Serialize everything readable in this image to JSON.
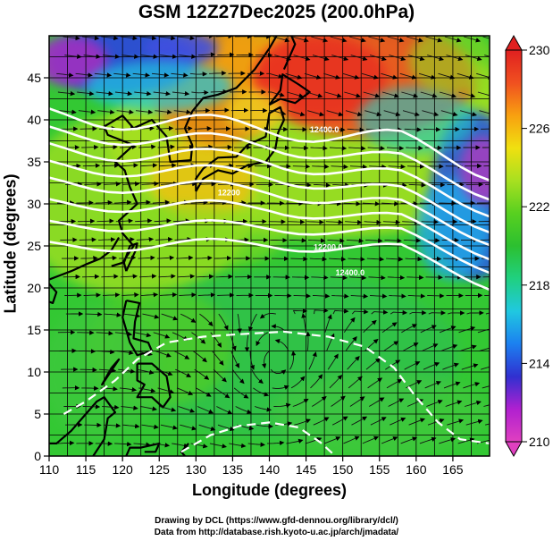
{
  "title": "GSM 12Z27Dec2025 (200.0hPa)",
  "xlabel": "Longitude (degrees)",
  "ylabel": "Latitude  (degrees)",
  "credits": [
    "Drawing by DCL (https://www.gfd-dennou.org/library/dcl/)",
    "Data from http://database.rish.kyoto-u.ac.jp/arch/jmadata/"
  ],
  "map": {
    "type": "heatmap",
    "x_ticks": [
      110,
      115,
      120,
      125,
      130,
      135,
      140,
      145,
      150,
      155,
      160,
      165
    ],
    "y_ticks": [
      0,
      5,
      10,
      15,
      20,
      25,
      30,
      35,
      40,
      45
    ],
    "xlim": [
      110,
      170
    ],
    "ylim": [
      0,
      50
    ],
    "grid": true,
    "colorbar": {
      "ticks": [
        210,
        214,
        218,
        222,
        226,
        230
      ],
      "range": [
        210,
        230
      ],
      "colors": [
        "#e040c0",
        "#b020d0",
        "#3030d0",
        "#1c80f0",
        "#20c8e0",
        "#20d080",
        "#2cc030",
        "#58d020",
        "#a8e020",
        "#f0e010",
        "#f8a010",
        "#f05020",
        "#e02020"
      ]
    },
    "contour_labels": [
      {
        "text": "12400.0",
        "lon": 147.5,
        "lat": 38.5
      },
      {
        "text": "12200.0",
        "lon": 148.0,
        "lat": 24.5
      },
      {
        "text": "12400.0",
        "lon": 151.0,
        "lat": 21.5
      },
      {
        "text": "12200",
        "lon": 134.5,
        "lat": 31.0
      }
    ]
  }
}
